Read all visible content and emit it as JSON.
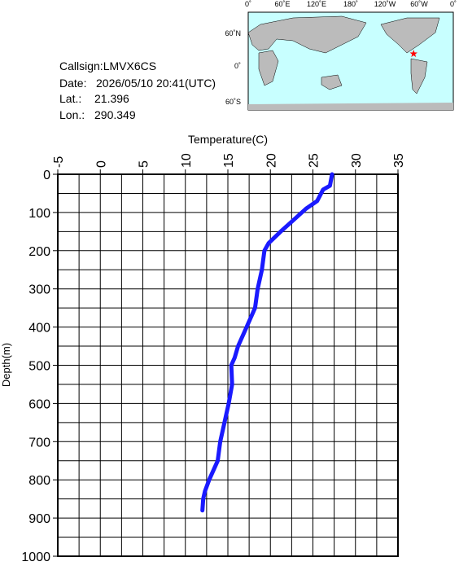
{
  "chart_data": {
    "type": "line",
    "x_label": "Temperature(C)",
    "y_label": "Depth(m)",
    "info": {
      "callsign": "Callsign:LMVX6CS",
      "date_label": "Date:",
      "date": "2026/05/10 20:41(UTC)",
      "lat_label": "Lat.:",
      "lat": 21.396,
      "lon_label": "Lon.:",
      "lon": 290.349
    },
    "map": {
      "top_labels": [
        "0˚",
        "60˚E",
        "120˚E",
        "180˚",
        "120˚W",
        "60˚W",
        "0˚"
      ],
      "left_labels": [
        "60˚N",
        "0˚",
        "60˚S"
      ]
    },
    "xlim": [
      -5,
      35
    ],
    "xticks": [
      -5,
      0,
      5,
      10,
      15,
      20,
      25,
      30,
      35
    ],
    "ylim": [
      0,
      1000
    ],
    "yticks": [
      0,
      100,
      200,
      300,
      400,
      500,
      600,
      700,
      800,
      900,
      1000
    ],
    "grid": true,
    "color": "#1a1aff",
    "y": [
      0,
      30,
      40,
      70,
      90,
      120,
      150,
      180,
      200,
      250,
      300,
      350,
      400,
      450,
      480,
      500,
      550,
      600,
      650,
      700,
      750,
      800,
      830,
      850,
      880
    ],
    "values": [
      27.25,
      27.0,
      26.2,
      25.5,
      24.2,
      22.7,
      21.2,
      19.8,
      19.3,
      19.0,
      18.5,
      18.2,
      17.2,
      16.2,
      15.8,
      15.4,
      15.5,
      15.1,
      14.6,
      14.1,
      13.8,
      12.8,
      12.3,
      12.1,
      12.0
    ]
  }
}
